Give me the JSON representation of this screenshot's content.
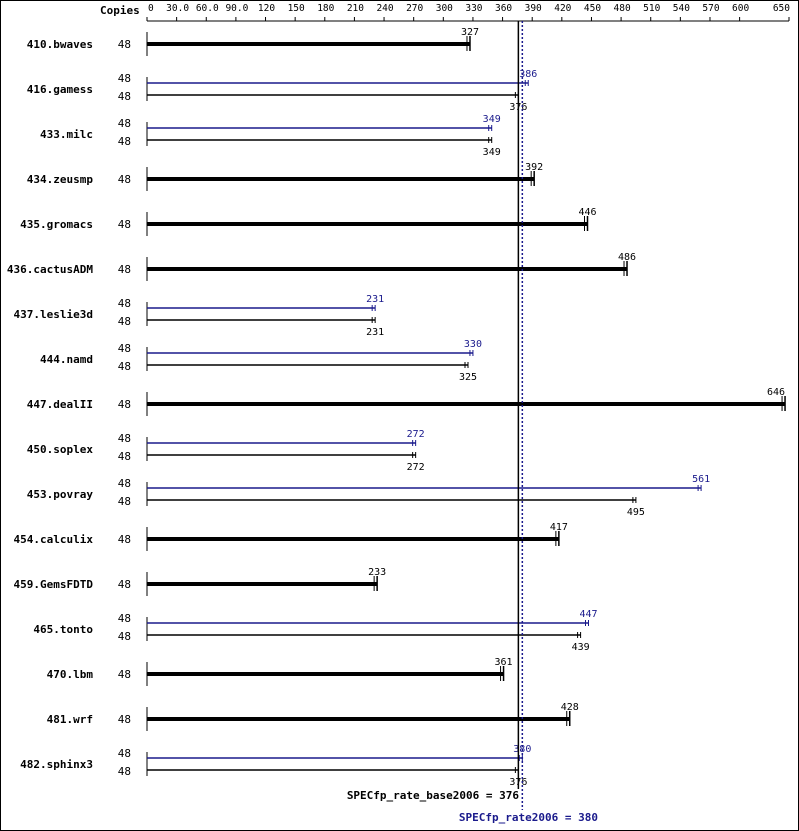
{
  "chart_data": {
    "type": "bar",
    "orientation": "horizontal",
    "header_label": "Copies",
    "xlim": [
      0,
      650
    ],
    "x_ticks": [
      {
        "v": 0,
        "label": "0"
      },
      {
        "v": 30,
        "label": "30.0"
      },
      {
        "v": 60,
        "label": "60.0"
      },
      {
        "v": 90,
        "label": "90.0"
      },
      {
        "v": 120,
        "label": "120"
      },
      {
        "v": 150,
        "label": "150"
      },
      {
        "v": 180,
        "label": "180"
      },
      {
        "v": 210,
        "label": "210"
      },
      {
        "v": 240,
        "label": "240"
      },
      {
        "v": 270,
        "label": "270"
      },
      {
        "v": 300,
        "label": "300"
      },
      {
        "v": 330,
        "label": "330"
      },
      {
        "v": 360,
        "label": "360"
      },
      {
        "v": 390,
        "label": "390"
      },
      {
        "v": 420,
        "label": "420"
      },
      {
        "v": 450,
        "label": "450"
      },
      {
        "v": 480,
        "label": "480"
      },
      {
        "v": 510,
        "label": "510"
      },
      {
        "v": 540,
        "label": "540"
      },
      {
        "v": 570,
        "label": "570"
      },
      {
        "v": 600,
        "label": "600"
      },
      {
        "v": 650,
        "label": "650"
      }
    ],
    "colors": {
      "base": "#000000",
      "peak": "#1a1a8c"
    },
    "benchmarks": [
      {
        "name": "410.bwaves",
        "copies_base": "48",
        "base": 327
      },
      {
        "name": "416.gamess",
        "copies_peak": "48",
        "peak": 386,
        "copies_base": "48",
        "base": 376
      },
      {
        "name": "433.milc",
        "copies_peak": "48",
        "peak": 349,
        "copies_base": "48",
        "base": 349
      },
      {
        "name": "434.zeusmp",
        "copies_base": "48",
        "base": 392
      },
      {
        "name": "435.gromacs",
        "copies_base": "48",
        "base": 446
      },
      {
        "name": "436.cactusADM",
        "copies_base": "48",
        "base": 486
      },
      {
        "name": "437.leslie3d",
        "copies_peak": "48",
        "peak": 231,
        "copies_base": "48",
        "base": 231
      },
      {
        "name": "444.namd",
        "copies_peak": "48",
        "peak": 330,
        "copies_base": "48",
        "base": 325
      },
      {
        "name": "447.dealII",
        "copies_base": "48",
        "base": 646
      },
      {
        "name": "450.soplex",
        "copies_peak": "48",
        "peak": 272,
        "copies_base": "48",
        "base": 272
      },
      {
        "name": "453.povray",
        "copies_peak": "48",
        "peak": 561,
        "copies_base": "48",
        "base": 495
      },
      {
        "name": "454.calculix",
        "copies_base": "48",
        "base": 417
      },
      {
        "name": "459.GemsFDTD",
        "copies_base": "48",
        "base": 233
      },
      {
        "name": "465.tonto",
        "copies_peak": "48",
        "peak": 447,
        "copies_base": "48",
        "base": 439
      },
      {
        "name": "470.lbm",
        "copies_base": "48",
        "base": 361
      },
      {
        "name": "481.wrf",
        "copies_base": "48",
        "base": 428
      },
      {
        "name": "482.sphinx3",
        "copies_peak": "48",
        "peak": 380,
        "copies_base": "48",
        "base": 376
      }
    ],
    "base_summary": {
      "label": "SPECfp_rate_base2006 = 376",
      "value": 376
    },
    "peak_summary": {
      "label": "SPECfp_rate2006 = 380",
      "value": 380
    }
  }
}
